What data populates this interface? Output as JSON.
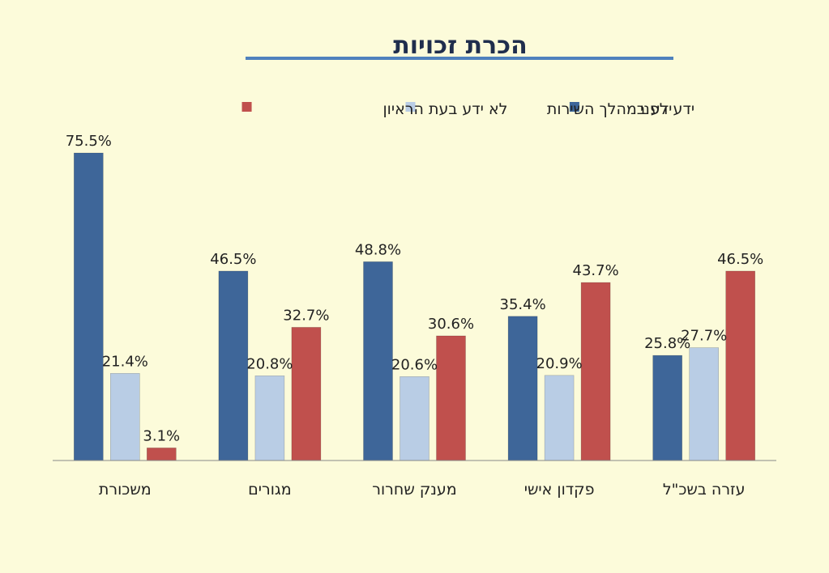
{
  "chart_data": {
    "type": "bar",
    "title": "הכרת זכויות",
    "categories": [
      "משכורת",
      "מגורים",
      "מענק שחרור",
      "פקדון אישי",
      "עזרה בשכ\"ל"
    ],
    "series": [
      {
        "name": "ידע לפני",
        "color": "#3e6699",
        "values": [
          75.5,
          46.5,
          48.8,
          35.4,
          25.8
        ]
      },
      {
        "name": "ידע במהלך השירות",
        "color": "#b9cde5",
        "values": [
          21.4,
          20.8,
          20.6,
          20.9,
          27.7
        ]
      },
      {
        "name": "לא ידע בעת הראיון",
        "color": "#c0504d",
        "values": [
          3.1,
          32.7,
          30.6,
          43.7,
          46.5
        ]
      }
    ],
    "value_suffix": "%",
    "ylim": [
      0,
      85
    ],
    "grid": false,
    "legend_position": "top"
  },
  "colors": {
    "background": "#fcfbda",
    "title_underline": "#4f81bd"
  }
}
